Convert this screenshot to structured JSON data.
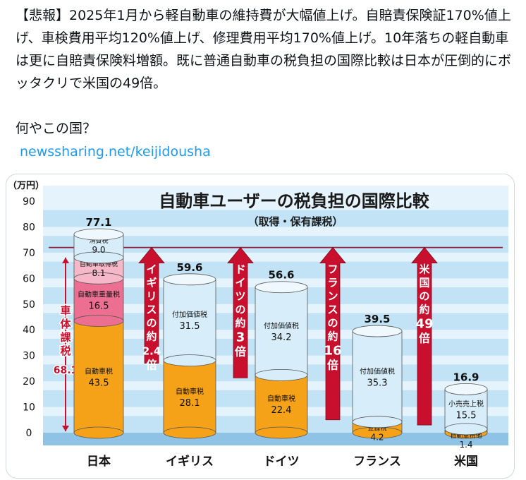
{
  "tweet": {
    "text": "【悲報】2025年1月から軽自動車の維持費が大幅値上げ。自賠責保険証170%値上げ、車検費用平均120%値上げ、修理費用平均170%値上げ。10年落ちの軽自動車は更に自賠責保険料増額。既に普通自動車の税負担の国際比較は日本が圧倒的にボッタクリで米国の49倍。\n\n何やこの国？",
    "link": "newssharing.net/keijidousha"
  },
  "colors": {
    "plot_bg_stripe": "#b9ddf3",
    "plot_bg_light": "#e4f3fc",
    "orange": "#f5a219",
    "pink": "#ec6f91",
    "light_pink": "#f6b8c8",
    "light_blue": "#d7eefa",
    "arrow_red": "#c8102e",
    "link": "#1d9bf0"
  },
  "chart_data": {
    "type": "bar",
    "title": "自動車ユーザーの税負担の国際比較",
    "subtitle": "（取得・保有課税）",
    "unit_label": "（万円）",
    "ylim": [
      0,
      90
    ],
    "y_ticks": [
      "0",
      "10",
      "20",
      "30",
      "40",
      "50",
      "60",
      "70",
      "80",
      "90"
    ],
    "categories": [
      "日本",
      "イギリス",
      "ドイツ",
      "フランス",
      "米国"
    ],
    "totals": [
      "77.1",
      "59.6",
      "56.6",
      "39.5",
      "16.9"
    ],
    "stacks": [
      [
        {
          "name": "自動車税",
          "value": 43.5,
          "label": "43.5",
          "color": "orange"
        },
        {
          "name": "自動車重量税",
          "value": 16.5,
          "label": "16.5",
          "color": "pink"
        },
        {
          "name": "自動車取得税",
          "value": 8.1,
          "label": "8.1",
          "color": "light_pink"
        },
        {
          "name": "消費税",
          "value": 9.0,
          "label": "9.0",
          "color": "light_blue"
        }
      ],
      [
        {
          "name": "自動車税",
          "value": 28.1,
          "label": "28.1",
          "color": "orange"
        },
        {
          "name": "付加価値税",
          "value": 31.5,
          "label": "31.5",
          "color": "light_blue"
        }
      ],
      [
        {
          "name": "自動車税",
          "value": 22.4,
          "label": "22.4",
          "color": "orange"
        },
        {
          "name": "付加価値税",
          "value": 34.2,
          "label": "34.2",
          "color": "light_blue"
        }
      ],
      [
        {
          "name": "登録税",
          "value": 4.2,
          "label": "4.2",
          "color": "orange"
        },
        {
          "name": "付加価値税",
          "value": 35.3,
          "label": "35.3",
          "color": "light_blue"
        }
      ],
      [
        {
          "name": "自動車税他",
          "value": 1.4,
          "label": "1.4",
          "color": "orange"
        },
        {
          "name": "小売売上税",
          "value": 15.5,
          "label": "15.5",
          "color": "light_blue"
        }
      ]
    ],
    "body_tax": {
      "label_chars": [
        "車",
        "体",
        "課",
        "税"
      ],
      "value": "68.1"
    },
    "reference_line": 72,
    "arrows": [
      {
        "chars": [
          "イ",
          "ギ",
          "リ",
          "ス",
          "の",
          "約"
        ],
        "ratio": "2.4",
        "suffix": "倍"
      },
      {
        "chars": [
          "ド",
          "イ",
          "ツ",
          "の",
          "約"
        ],
        "ratio": "3",
        "suffix": "倍"
      },
      {
        "chars": [
          "フ",
          "ラ",
          "ン",
          "ス",
          "の",
          "約"
        ],
        "ratio": "16",
        "suffix": "倍"
      },
      {
        "chars": [
          "米",
          "国",
          "の",
          "約"
        ],
        "ratio": "49",
        "suffix": "倍"
      }
    ]
  }
}
